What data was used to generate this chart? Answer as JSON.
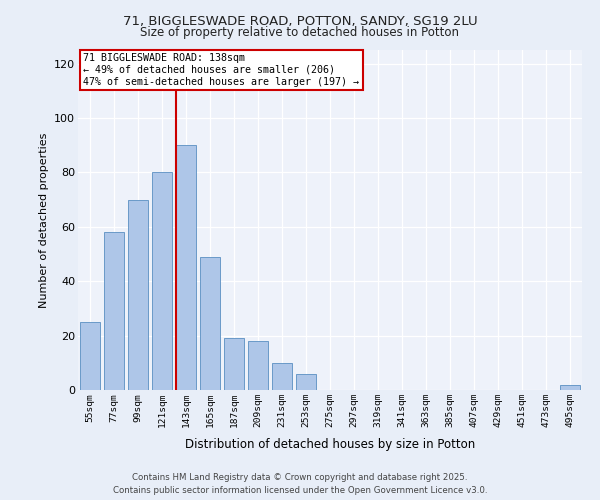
{
  "title1": "71, BIGGLESWADE ROAD, POTTON, SANDY, SG19 2LU",
  "title2": "Size of property relative to detached houses in Potton",
  "xlabel": "Distribution of detached houses by size in Potton",
  "ylabel": "Number of detached properties",
  "bar_labels": [
    "55sqm",
    "77sqm",
    "99sqm",
    "121sqm",
    "143sqm",
    "165sqm",
    "187sqm",
    "209sqm",
    "231sqm",
    "253sqm",
    "275sqm",
    "297sqm",
    "319sqm",
    "341sqm",
    "363sqm",
    "385sqm",
    "407sqm",
    "429sqm",
    "451sqm",
    "473sqm",
    "495sqm"
  ],
  "bar_values": [
    25,
    58,
    70,
    80,
    90,
    49,
    19,
    18,
    10,
    6,
    0,
    0,
    0,
    0,
    0,
    0,
    0,
    0,
    0,
    0,
    2
  ],
  "bar_color": "#aec6e8",
  "bar_edge_color": "#5a8fc2",
  "vline_x_index": 4,
  "vline_color": "#cc0000",
  "annotation_title": "71 BIGGLESWADE ROAD: 138sqm",
  "annotation_line1": "← 49% of detached houses are smaller (206)",
  "annotation_line2": "47% of semi-detached houses are larger (197) →",
  "annotation_box_color": "#cc0000",
  "ylim": [
    0,
    125
  ],
  "yticks": [
    0,
    20,
    40,
    60,
    80,
    100,
    120
  ],
  "footer1": "Contains HM Land Registry data © Crown copyright and database right 2025.",
  "footer2": "Contains public sector information licensed under the Open Government Licence v3.0.",
  "bg_color": "#e8eef8",
  "plot_bg_color": "#eef2fa"
}
